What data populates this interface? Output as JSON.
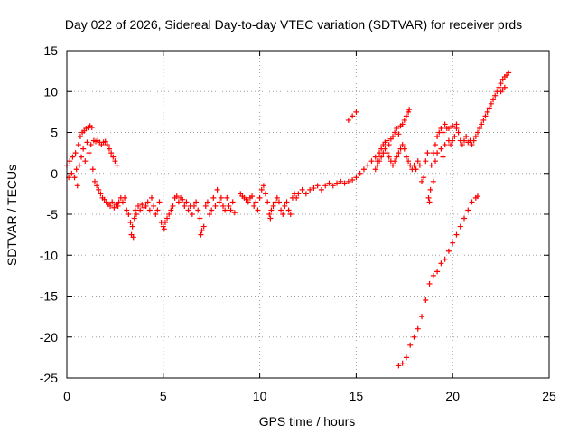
{
  "chart_data": {
    "type": "scatter",
    "title": "Day 022 of 2026, Sidereal Day-to-day VTEC variation (SDTVAR) for receiver prds",
    "xlabel": "GPS time / hours",
    "ylabel": "SDTVAR / TECUs",
    "xlim": [
      0,
      25
    ],
    "ylim": [
      -25,
      15
    ],
    "x_ticks": [
      0,
      5,
      10,
      15,
      20,
      25
    ],
    "x_tick_labels": [
      "0",
      "5",
      "10",
      "15",
      "20",
      "25"
    ],
    "y_ticks": [
      -25,
      -20,
      -15,
      -10,
      -5,
      0,
      5,
      10,
      15
    ],
    "y_tick_labels": [
      "-25",
      "-20",
      "-15",
      "-10",
      "-5",
      "0",
      "5",
      "10",
      "15"
    ],
    "grid": true,
    "marker": "plus",
    "colors": {
      "series": "#ff0000",
      "grid": "#a0a0a0",
      "axes": "#000000"
    },
    "series": [
      {
        "points": [
          [
            0.0,
            1.0
          ],
          [
            0.1,
            -0.5
          ],
          [
            0.15,
            1.5
          ],
          [
            0.25,
            0.0
          ],
          [
            0.3,
            2.0
          ],
          [
            0.4,
            -0.5
          ],
          [
            0.45,
            2.5
          ],
          [
            0.5,
            0.5
          ],
          [
            0.55,
            -1.5
          ],
          [
            0.6,
            3.5
          ],
          [
            0.65,
            1.0
          ],
          [
            0.7,
            4.5
          ],
          [
            0.75,
            2.0
          ],
          [
            0.8,
            5.0
          ],
          [
            0.85,
            3.0
          ],
          [
            0.9,
            5.2
          ],
          [
            0.95,
            1.5
          ],
          [
            1.0,
            5.5
          ],
          [
            1.05,
            3.8
          ],
          [
            1.1,
            5.6
          ],
          [
            1.15,
            2.5
          ],
          [
            1.2,
            5.8
          ],
          [
            1.25,
            3.5
          ],
          [
            1.3,
            5.6
          ],
          [
            1.35,
            0.5
          ],
          [
            1.4,
            4.0
          ],
          [
            1.45,
            -1.0
          ],
          [
            1.5,
            3.9
          ],
          [
            1.55,
            -1.5
          ],
          [
            1.6,
            4.0
          ],
          [
            1.65,
            -2.0
          ],
          [
            1.7,
            3.8
          ],
          [
            1.75,
            -2.5
          ],
          [
            1.8,
            3.5
          ],
          [
            1.85,
            -3.0
          ],
          [
            1.9,
            3.8
          ],
          [
            1.95,
            -3.2
          ],
          [
            2.0,
            3.9
          ],
          [
            2.05,
            -3.5
          ],
          [
            2.1,
            3.5
          ],
          [
            2.15,
            -3.8
          ],
          [
            2.2,
            3.0
          ],
          [
            2.25,
            -4.0
          ],
          [
            2.3,
            2.5
          ],
          [
            2.35,
            -3.5
          ],
          [
            2.4,
            2.0
          ],
          [
            2.45,
            -4.2
          ],
          [
            2.5,
            1.5
          ],
          [
            2.55,
            -3.8
          ],
          [
            2.6,
            1.0
          ],
          [
            2.65,
            -4.0
          ],
          [
            2.7,
            -3.5
          ],
          [
            2.8,
            -3.0
          ],
          [
            2.9,
            -3.5
          ],
          [
            3.0,
            -3.0
          ],
          [
            3.1,
            -4.5
          ],
          [
            3.2,
            -5.0
          ],
          [
            3.3,
            -6.0
          ],
          [
            3.35,
            -7.5
          ],
          [
            3.4,
            -6.5
          ],
          [
            3.45,
            -7.8
          ],
          [
            3.5,
            -5.5
          ],
          [
            3.55,
            -4.5
          ],
          [
            3.6,
            -5.0
          ],
          [
            3.7,
            -4.0
          ],
          [
            3.8,
            -4.5
          ],
          [
            3.9,
            -3.8
          ],
          [
            4.0,
            -4.2
          ],
          [
            4.1,
            -4.0
          ],
          [
            4.2,
            -3.5
          ],
          [
            4.3,
            -4.5
          ],
          [
            4.4,
            -3.0
          ],
          [
            4.5,
            -4.0
          ],
          [
            4.6,
            -5.0
          ],
          [
            4.7,
            -4.5
          ],
          [
            4.8,
            -3.5
          ],
          [
            4.9,
            -6.0
          ],
          [
            5.0,
            -6.5
          ],
          [
            5.05,
            -6.8
          ],
          [
            5.1,
            -6.0
          ],
          [
            5.2,
            -5.5
          ],
          [
            5.3,
            -5.0
          ],
          [
            5.4,
            -4.5
          ],
          [
            5.5,
            -4.0
          ],
          [
            5.6,
            -3.0
          ],
          [
            5.7,
            -2.8
          ],
          [
            5.8,
            -3.5
          ],
          [
            5.9,
            -3.0
          ],
          [
            6.0,
            -3.2
          ],
          [
            6.1,
            -4.0
          ],
          [
            6.2,
            -3.5
          ],
          [
            6.3,
            -4.5
          ],
          [
            6.4,
            -4.0
          ],
          [
            6.5,
            -5.0
          ],
          [
            6.6,
            -4.0
          ],
          [
            6.7,
            -3.5
          ],
          [
            6.8,
            -4.5
          ],
          [
            6.9,
            -5.5
          ],
          [
            6.95,
            -7.5
          ],
          [
            7.0,
            -7.0
          ],
          [
            7.1,
            -6.5
          ],
          [
            7.2,
            -4.0
          ],
          [
            7.3,
            -3.5
          ],
          [
            7.4,
            -5.0
          ],
          [
            7.5,
            -4.5
          ],
          [
            7.6,
            -3.0
          ],
          [
            7.7,
            -4.0
          ],
          [
            7.8,
            -2.0
          ],
          [
            7.9,
            -3.5
          ],
          [
            8.0,
            -3.0
          ],
          [
            8.1,
            -4.0
          ],
          [
            8.2,
            -4.5
          ],
          [
            8.3,
            -3.0
          ],
          [
            8.4,
            -4.0
          ],
          [
            8.5,
            -4.5
          ],
          [
            8.6,
            -3.5
          ],
          [
            8.7,
            -4.8
          ],
          [
            9.0,
            -2.5
          ],
          [
            9.1,
            -2.8
          ],
          [
            9.2,
            -3.0
          ],
          [
            9.3,
            -3.2
          ],
          [
            9.4,
            -3.5
          ],
          [
            9.5,
            -3.0
          ],
          [
            9.6,
            -2.8
          ],
          [
            9.7,
            -4.0
          ],
          [
            9.8,
            -3.5
          ],
          [
            9.9,
            -4.5
          ],
          [
            10.0,
            -3.0
          ],
          [
            10.1,
            -2.0
          ],
          [
            10.2,
            -1.5
          ],
          [
            10.3,
            -2.5
          ],
          [
            10.4,
            -3.5
          ],
          [
            10.5,
            -5.0
          ],
          [
            10.55,
            -5.5
          ],
          [
            10.6,
            -4.5
          ],
          [
            10.7,
            -4.0
          ],
          [
            10.8,
            -3.5
          ],
          [
            10.9,
            -3.0
          ],
          [
            11.0,
            -3.5
          ],
          [
            11.1,
            -4.5
          ],
          [
            11.2,
            -5.0
          ],
          [
            11.3,
            -4.0
          ],
          [
            11.4,
            -3.5
          ],
          [
            11.5,
            -4.5
          ],
          [
            11.6,
            -5.0
          ],
          [
            11.7,
            -3.0
          ],
          [
            11.8,
            -2.5
          ],
          [
            11.9,
            -3.0
          ],
          [
            12.0,
            -2.5
          ],
          [
            12.2,
            -2.0
          ],
          [
            12.4,
            -2.5
          ],
          [
            12.6,
            -2.0
          ],
          [
            12.8,
            -1.8
          ],
          [
            13.0,
            -1.5
          ],
          [
            13.2,
            -2.0
          ],
          [
            13.4,
            -1.5
          ],
          [
            13.6,
            -1.2
          ],
          [
            13.8,
            -1.5
          ],
          [
            14.0,
            -1.2
          ],
          [
            14.2,
            -1.0
          ],
          [
            14.4,
            -1.2
          ],
          [
            14.6,
            -1.0
          ],
          [
            14.8,
            -0.8
          ],
          [
            15.0,
            -0.5
          ],
          [
            15.2,
            0.0
          ],
          [
            15.4,
            0.5
          ],
          [
            15.6,
            1.0
          ],
          [
            15.8,
            1.5
          ],
          [
            16.0,
            2.0
          ],
          [
            16.1,
            1.5
          ],
          [
            16.2,
            2.5
          ],
          [
            16.3,
            3.0
          ],
          [
            16.4,
            3.5
          ],
          [
            16.5,
            3.8
          ],
          [
            16.6,
            4.0
          ],
          [
            16.7,
            3.5
          ],
          [
            16.8,
            4.2
          ],
          [
            16.9,
            4.5
          ],
          [
            17.0,
            5.0
          ],
          [
            17.1,
            5.5
          ],
          [
            17.2,
            4.8
          ],
          [
            17.3,
            5.8
          ],
          [
            17.4,
            6.0
          ],
          [
            17.5,
            6.5
          ],
          [
            17.6,
            7.0
          ],
          [
            17.7,
            7.5
          ],
          [
            17.75,
            7.8
          ],
          [
            16.0,
            0.5
          ],
          [
            16.1,
            1.0
          ],
          [
            16.2,
            1.5
          ],
          [
            16.3,
            2.0
          ],
          [
            16.4,
            2.5
          ],
          [
            16.5,
            3.0
          ],
          [
            16.6,
            2.5
          ],
          [
            16.7,
            2.0
          ],
          [
            16.8,
            1.5
          ],
          [
            16.9,
            1.0
          ],
          [
            17.0,
            1.5
          ],
          [
            17.1,
            2.0
          ],
          [
            17.2,
            2.5
          ],
          [
            17.3,
            3.0
          ],
          [
            17.4,
            3.5
          ],
          [
            17.5,
            3.0
          ],
          [
            17.6,
            2.0
          ],
          [
            17.7,
            1.5
          ],
          [
            17.8,
            1.0
          ],
          [
            17.9,
            0.5
          ],
          [
            18.0,
            1.0
          ],
          [
            18.1,
            0.5
          ],
          [
            18.2,
            1.5
          ],
          [
            18.3,
            1.0
          ],
          [
            18.4,
            -1.0
          ],
          [
            18.5,
            -0.5
          ],
          [
            18.6,
            1.5
          ],
          [
            18.7,
            2.5
          ],
          [
            18.75,
            -3.0
          ],
          [
            18.8,
            -3.5
          ],
          [
            18.85,
            -2.0
          ],
          [
            18.9,
            1.0
          ],
          [
            19.0,
            2.5
          ],
          [
            19.1,
            3.5
          ],
          [
            19.2,
            4.5
          ],
          [
            19.3,
            5.0
          ],
          [
            19.4,
            5.5
          ],
          [
            19.5,
            5.0
          ],
          [
            19.6,
            6.0
          ],
          [
            19.7,
            5.5
          ],
          [
            19.8,
            4.0
          ],
          [
            19.9,
            3.5
          ],
          [
            20.0,
            4.0
          ],
          [
            20.1,
            4.5
          ],
          [
            20.2,
            5.5
          ],
          [
            20.3,
            5.0
          ],
          [
            20.4,
            4.0
          ],
          [
            20.5,
            3.5
          ],
          [
            20.6,
            4.0
          ],
          [
            20.7,
            4.5
          ],
          [
            20.8,
            3.8
          ],
          [
            20.9,
            4.0
          ],
          [
            21.0,
            3.5
          ],
          [
            21.1,
            4.0
          ],
          [
            21.2,
            4.5
          ],
          [
            21.3,
            5.0
          ],
          [
            21.4,
            5.5
          ],
          [
            21.5,
            6.0
          ],
          [
            21.6,
            6.5
          ],
          [
            21.7,
            7.0
          ],
          [
            21.8,
            7.5
          ],
          [
            21.9,
            8.0
          ],
          [
            22.0,
            8.5
          ],
          [
            22.1,
            9.0
          ],
          [
            22.2,
            9.5
          ],
          [
            22.3,
            10.0
          ],
          [
            22.4,
            10.5
          ],
          [
            22.5,
            11.0
          ],
          [
            22.6,
            11.5
          ],
          [
            22.7,
            11.8
          ],
          [
            22.8,
            12.0
          ],
          [
            22.9,
            12.3
          ],
          [
            22.5,
            10.0
          ],
          [
            22.6,
            10.2
          ],
          [
            22.7,
            10.5
          ],
          [
            14.6,
            6.5
          ],
          [
            14.8,
            7.0
          ],
          [
            15.0,
            7.5
          ],
          [
            19.0,
            -1.0
          ],
          [
            19.1,
            1.5
          ],
          [
            19.2,
            2.5
          ],
          [
            19.4,
            3.0
          ],
          [
            19.5,
            2.0
          ],
          [
            19.6,
            3.5
          ],
          [
            19.8,
            5.5
          ],
          [
            20.0,
            5.8
          ],
          [
            20.2,
            6.0
          ],
          [
            17.2,
            -23.5
          ],
          [
            17.4,
            -23.2
          ],
          [
            17.6,
            -22.5
          ],
          [
            17.8,
            -21.0
          ],
          [
            18.0,
            -20.0
          ],
          [
            18.2,
            -19.0
          ],
          [
            18.4,
            -17.5
          ],
          [
            18.6,
            -15.5
          ],
          [
            18.8,
            -13.5
          ],
          [
            19.0,
            -12.5
          ],
          [
            19.2,
            -12.0
          ],
          [
            19.4,
            -11.0
          ],
          [
            19.6,
            -10.5
          ],
          [
            19.8,
            -9.5
          ],
          [
            20.0,
            -8.5
          ],
          [
            20.2,
            -7.5
          ],
          [
            20.4,
            -6.5
          ],
          [
            20.6,
            -5.5
          ],
          [
            20.8,
            -4.5
          ],
          [
            21.0,
            -3.5
          ],
          [
            21.2,
            -3.0
          ],
          [
            21.3,
            -2.8
          ]
        ]
      }
    ]
  }
}
